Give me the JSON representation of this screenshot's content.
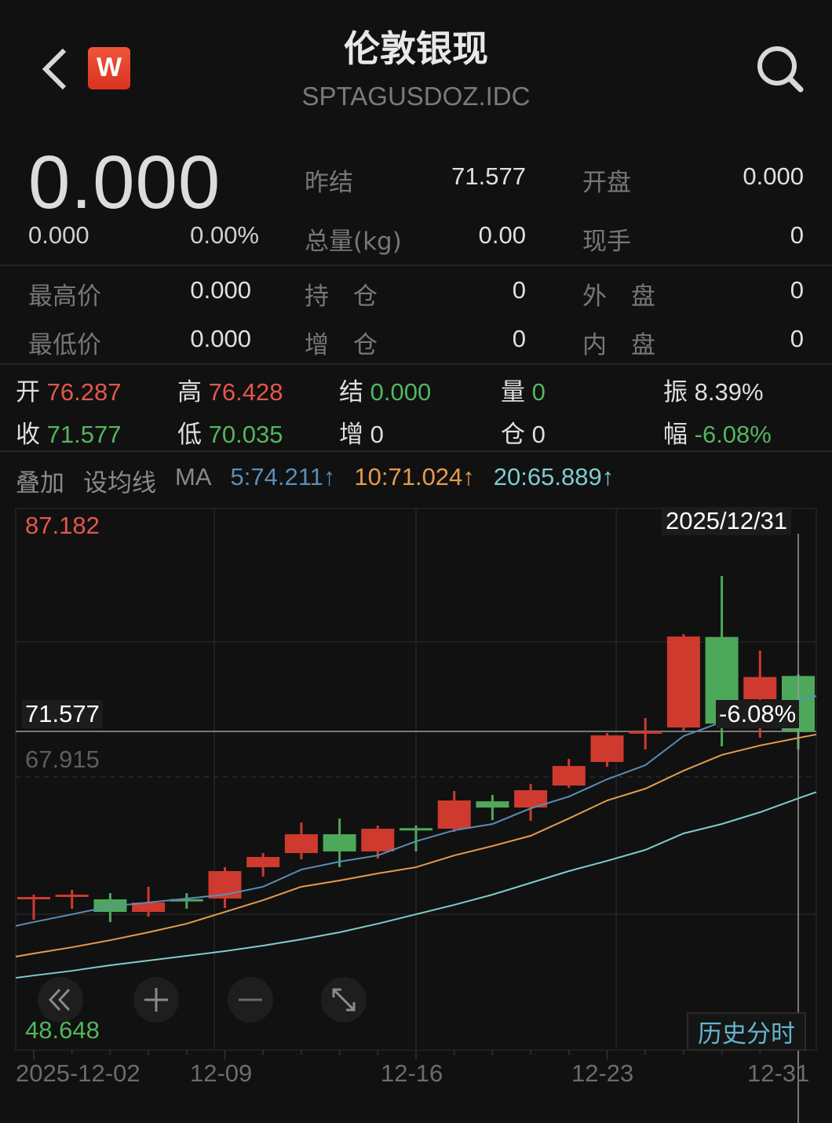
{
  "header": {
    "title": "伦敦银现",
    "symbol": "SPTAGUSDOZ.IDC",
    "logo_letter": "W",
    "icons": {
      "back": "chevron-left-icon",
      "search": "search-icon"
    }
  },
  "quote": {
    "price": "0.000",
    "change": "0.000",
    "change_pct": "0.00%",
    "stats": [
      {
        "label": "昨结",
        "value": "71.577"
      },
      {
        "label": "开盘",
        "value": "0.000"
      },
      {
        "label": "总量(kg)",
        "value": "0.00"
      },
      {
        "label": "现手",
        "value": "0"
      },
      {
        "label": "最高价",
        "value": "0.000"
      },
      {
        "label": "持　仓",
        "value": "0"
      },
      {
        "label": "外　盘",
        "value": "0"
      },
      {
        "label": "最低价",
        "value": "0.000"
      },
      {
        "label": "增　仓",
        "value": "0"
      },
      {
        "label": "内　盘",
        "value": "0"
      }
    ]
  },
  "ohlc": {
    "open": {
      "label": "开",
      "value": "76.287"
    },
    "high": {
      "label": "高",
      "value": "76.428"
    },
    "settle": {
      "label": "结",
      "value": "0.000"
    },
    "volume": {
      "label": "量",
      "value": "0"
    },
    "amplitude": {
      "label": "振",
      "value": "8.39%"
    },
    "close": {
      "label": "收",
      "value": "71.577"
    },
    "low": {
      "label": "低",
      "value": "70.035"
    },
    "increase": {
      "label": "增",
      "value": "0"
    },
    "position": {
      "label": "仓",
      "value": "0"
    },
    "range": {
      "label": "幅",
      "value": "-6.08%"
    }
  },
  "toolbar": {
    "overlay": "叠加",
    "set_ma": "设均线",
    "ma_label": "MA",
    "ma5": "5:74.211↑",
    "ma10": "10:71.024↑",
    "ma20": "20:65.889↑"
  },
  "colors": {
    "up": "#cf3a2f",
    "down": "#4ea85a",
    "ma5": "#5a8db8",
    "ma10": "#e89a4e",
    "ma20": "#80cccc",
    "bg": "#111111"
  },
  "chart_data": {
    "type": "candlestick",
    "axis_labels": {
      "max": "87.182",
      "current": "71.577",
      "mid": "67.915",
      "min": "48.648"
    },
    "crosshair_date": "2025/12/31",
    "crosshair_change": "-6.08%",
    "x_ticks": [
      "2025-12-02",
      "12-09",
      "12-16",
      "12-23",
      "12-31"
    ],
    "dates": [
      "2025-12-02",
      "2025-12-03",
      "2025-12-04",
      "2025-12-05",
      "2025-12-08",
      "2025-12-09",
      "2025-12-10",
      "2025-12-11",
      "2025-12-12",
      "2025-12-15",
      "2025-12-16",
      "2025-12-17",
      "2025-12-18",
      "2025-12-19",
      "2025-12-22",
      "2025-12-23",
      "2025-12-24",
      "2025-12-26",
      "2025-12-29",
      "2025-12-30",
      "2025-12-31"
    ],
    "open": [
      57.48,
      57.68,
      57.31,
      56.24,
      57.33,
      57.38,
      60.04,
      61.24,
      62.84,
      61.38,
      63.36,
      63.31,
      65.64,
      65.11,
      66.98,
      68.98,
      71.5,
      71.91,
      79.6,
      74.31,
      76.287
    ],
    "high": [
      57.71,
      58.11,
      57.84,
      58.38,
      57.84,
      60.04,
      61.24,
      63.84,
      64.18,
      63.58,
      63.58,
      66.51,
      66.18,
      67.11,
      69.24,
      71.44,
      72.71,
      79.84,
      84.78,
      78.44,
      76.428
    ],
    "low": [
      55.58,
      56.51,
      55.38,
      55.84,
      56.51,
      56.58,
      59.24,
      60.71,
      60.04,
      60.78,
      61.38,
      63.04,
      64.04,
      63.98,
      66.78,
      68.58,
      70.04,
      71.64,
      70.31,
      71.04,
      70.035
    ],
    "close": [
      57.51,
      57.71,
      56.24,
      57.04,
      57.28,
      59.71,
      60.91,
      62.84,
      61.38,
      63.31,
      63.31,
      65.71,
      65.11,
      66.58,
      68.64,
      71.24,
      71.58,
      79.64,
      72.24,
      76.2,
      71.577
    ],
    "ma5": [
      55.38,
      56.04,
      56.71,
      57.04,
      57.38,
      57.71,
      58.38,
      59.84,
      60.51,
      61.04,
      62.24,
      63.18,
      63.71,
      65.04,
      66.04,
      67.51,
      68.71,
      71.18,
      72.38,
      73.38,
      74.211
    ],
    "ma10": [
      52.71,
      53.24,
      53.84,
      54.51,
      55.24,
      56.24,
      57.24,
      58.38,
      58.91,
      59.51,
      60.04,
      61.04,
      61.84,
      62.71,
      64.18,
      65.71,
      66.71,
      68.24,
      69.58,
      70.38,
      71.024
    ],
    "ma20": [
      50.84,
      51.24,
      51.71,
      52.11,
      52.51,
      52.91,
      53.38,
      53.91,
      54.51,
      55.24,
      56.04,
      56.84,
      57.71,
      58.71,
      59.71,
      60.58,
      61.51,
      62.91,
      63.71,
      64.71,
      65.889
    ],
    "grid": true
  },
  "controls": {
    "icons": [
      "double-chevron-left-icon",
      "plus-icon",
      "minus-icon",
      "expand-icon"
    ],
    "history_intraday": "历史分时"
  }
}
